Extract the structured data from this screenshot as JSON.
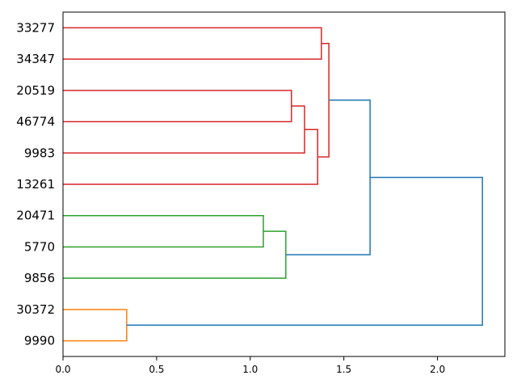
{
  "chart_data": {
    "type": "dendrogram",
    "orientation": "horizontal",
    "xlim": [
      0,
      2.36
    ],
    "x_ticks": [
      0.0,
      0.5,
      1.0,
      1.5,
      2.0
    ],
    "x_tick_labels": [
      "0.0",
      "0.5",
      "1.0",
      "1.5",
      "2.0"
    ],
    "leaves": [
      "33277",
      "34347",
      "20519",
      "46774",
      "9983",
      "13261",
      "20471",
      "5770",
      "9856",
      "30372",
      "9990"
    ],
    "links": [
      {
        "children": [
          "33277",
          "34347"
        ],
        "height": 1.38,
        "color": "#d62728"
      },
      {
        "children": [
          "20519",
          "46774"
        ],
        "height": 1.22,
        "color": "#d62728"
      },
      {
        "children": [
          "(20519,46774)",
          "9983"
        ],
        "height": 1.29,
        "color": "#d62728"
      },
      {
        "children": [
          "((20519,46774),9983)",
          "13261"
        ],
        "height": 1.36,
        "color": "#d62728"
      },
      {
        "children": [
          "(33277,34347)",
          "(((20519,46774),9983),13261)"
        ],
        "height": 1.42,
        "color": "#d62728"
      },
      {
        "children": [
          "20471",
          "5770"
        ],
        "height": 1.07,
        "color": "#2ca02c"
      },
      {
        "children": [
          "(20471,5770)",
          "9856"
        ],
        "height": 1.19,
        "color": "#2ca02c"
      },
      {
        "children": [
          "red-cluster",
          "green-cluster"
        ],
        "height": 1.64,
        "color": "#1f77b4"
      },
      {
        "children": [
          "30372",
          "9990"
        ],
        "height": 0.34,
        "color": "#ff7f0e"
      },
      {
        "children": [
          "red+green",
          "orange-cluster"
        ],
        "height": 2.24,
        "color": "#1f77b4"
      }
    ]
  }
}
